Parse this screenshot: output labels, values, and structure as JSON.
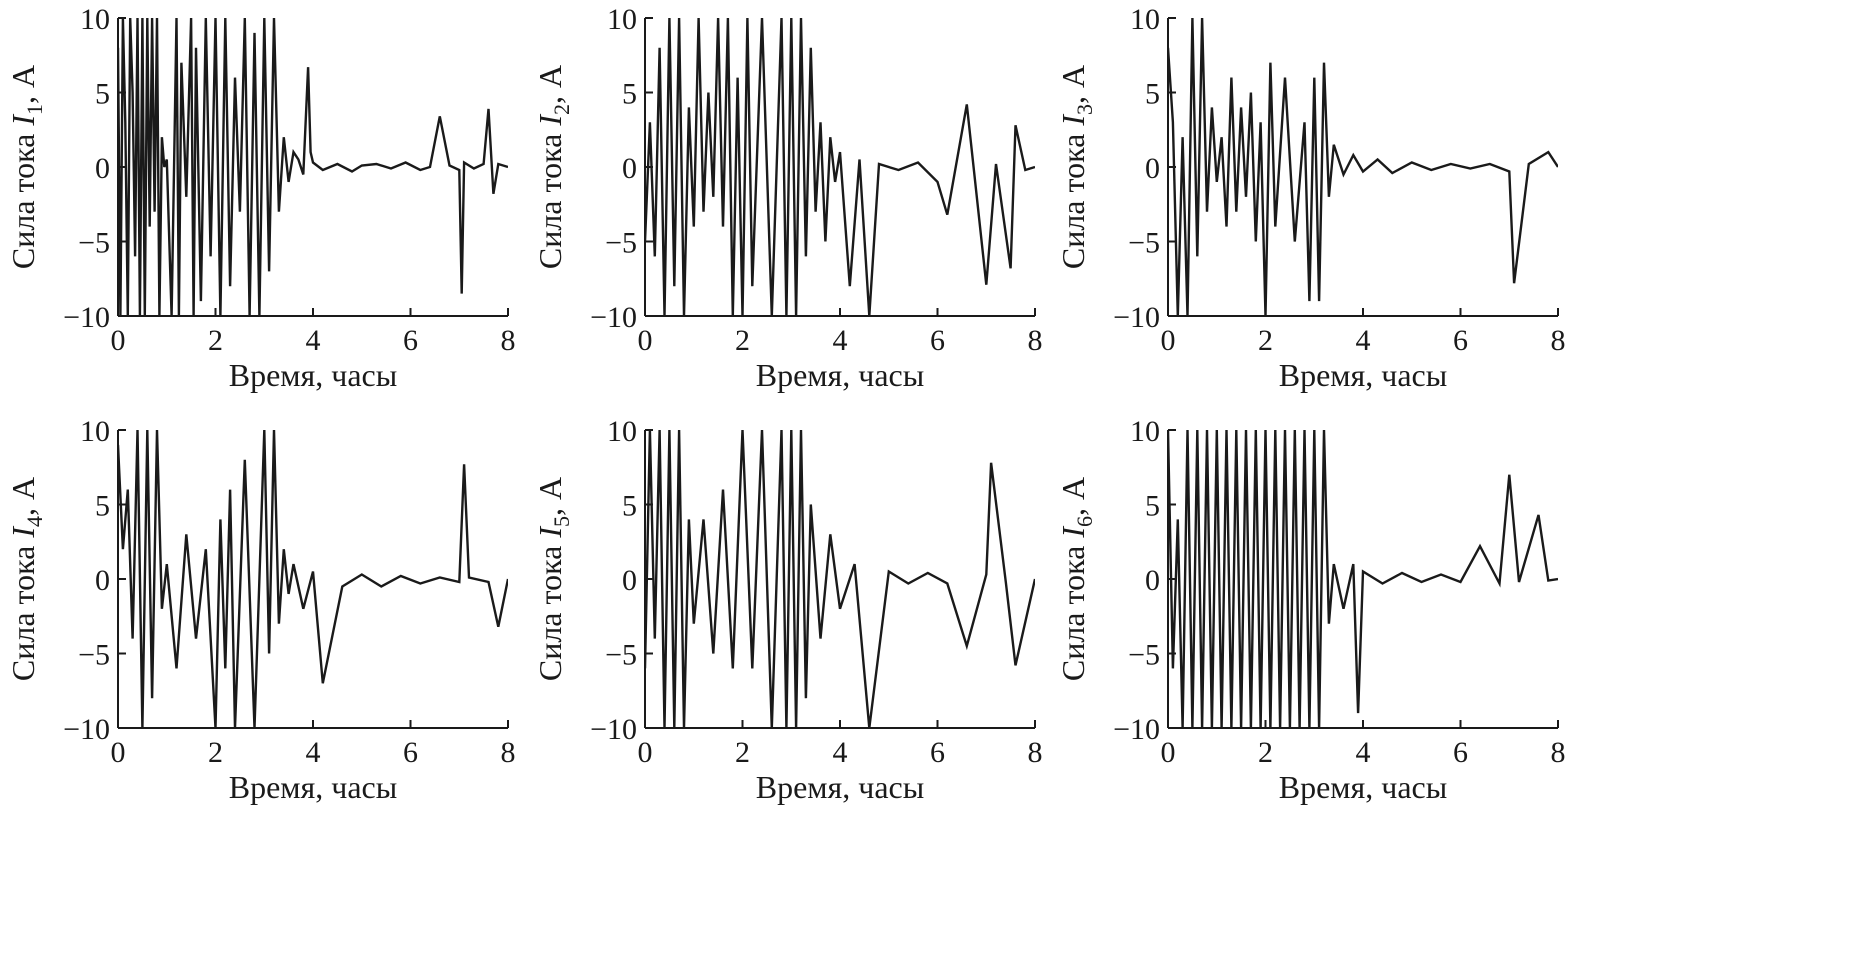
{
  "figure": {
    "panels": [
      {
        "id": "I1",
        "ylabel_prefix": "Сила тока ",
        "ylabel_var": "I",
        "ylabel_sub": "1",
        "ylabel_suffix": ", А"
      },
      {
        "id": "I2",
        "ylabel_prefix": "Сила тока ",
        "ylabel_var": "I",
        "ylabel_sub": "2",
        "ylabel_suffix": ", А"
      },
      {
        "id": "I3",
        "ylabel_prefix": "Сила тока ",
        "ylabel_var": "I",
        "ylabel_sub": "3",
        "ylabel_suffix": ", А"
      },
      {
        "id": "I4",
        "ylabel_prefix": "Сила тока ",
        "ylabel_var": "I",
        "ylabel_sub": "4",
        "ylabel_suffix": ", А"
      },
      {
        "id": "I5",
        "ylabel_prefix": "Сила тока ",
        "ylabel_var": "I",
        "ylabel_sub": "5",
        "ylabel_suffix": ", А"
      },
      {
        "id": "I6",
        "ylabel_prefix": "Сила тока ",
        "ylabel_var": "I",
        "ylabel_sub": "6",
        "ylabel_suffix": ", А"
      }
    ],
    "line_color": "#1a1a1a"
  },
  "chart_data": [
    {
      "type": "line",
      "title": "",
      "xlabel": "Время, часы",
      "ylabel": "Сила тока I1, А",
      "xlim": [
        0,
        8
      ],
      "ylim": [
        -10,
        10
      ],
      "xticks": [
        0,
        2,
        4,
        6,
        8
      ],
      "xtick_labels": [
        "0",
        "2",
        "4",
        "6",
        "8"
      ],
      "yticks": [
        -10,
        -5,
        0,
        5,
        10
      ],
      "ytick_labels": [
        "−10",
        "−5",
        "0",
        "5",
        "10"
      ],
      "grid": false,
      "series": [
        {
          "name": "I1",
          "x": [
            0,
            0.05,
            0.1,
            0.15,
            0.2,
            0.25,
            0.3,
            0.35,
            0.4,
            0.45,
            0.5,
            0.55,
            0.6,
            0.65,
            0.7,
            0.75,
            0.8,
            0.85,
            0.9,
            0.95,
            1.0,
            1.1,
            1.2,
            1.25,
            1.3,
            1.4,
            1.5,
            1.55,
            1.6,
            1.7,
            1.8,
            1.9,
            2.0,
            2.1,
            2.2,
            2.3,
            2.4,
            2.5,
            2.6,
            2.7,
            2.8,
            2.9,
            3.0,
            3.1,
            3.2,
            3.3,
            3.4,
            3.5,
            3.6,
            3.7,
            3.8,
            3.9,
            3.95,
            4.0,
            4.2,
            4.5,
            4.8,
            5.0,
            5.3,
            5.6,
            5.9,
            6.2,
            6.4,
            6.6,
            6.8,
            7.0,
            7.05,
            7.1,
            7.3,
            7.5,
            7.6,
            7.7,
            7.8,
            8.0
          ],
          "y": [
            8,
            -10,
            10,
            3,
            -10,
            10,
            5,
            -6,
            10,
            -10,
            10,
            -10,
            10,
            -4,
            10,
            -3,
            10,
            -10,
            2,
            0,
            0.5,
            -10,
            10,
            -10,
            7,
            -2,
            10,
            -10,
            8,
            -9,
            10,
            -6,
            10,
            -10,
            10,
            -8,
            6,
            -3,
            10,
            -10,
            9,
            -10,
            10,
            -7,
            10,
            -3,
            2,
            -1,
            1,
            0.5,
            -0.5,
            6.7,
            1,
            0.3,
            -0.2,
            0.2,
            -0.3,
            0.1,
            0.2,
            -0.1,
            0.3,
            -0.2,
            0,
            3.4,
            0.1,
            -0.2,
            -8.5,
            0.3,
            -0.1,
            0.2,
            3.9,
            -1.8,
            0.2,
            0
          ]
        }
      ]
    },
    {
      "type": "line",
      "title": "",
      "xlabel": "Время, часы",
      "ylabel": "Сила тока I2, А",
      "xlim": [
        0,
        8
      ],
      "ylim": [
        -10,
        10
      ],
      "xticks": [
        0,
        2,
        4,
        6,
        8
      ],
      "xtick_labels": [
        "0",
        "2",
        "4",
        "6",
        "8"
      ],
      "yticks": [
        -10,
        -5,
        0,
        5,
        10
      ],
      "ytick_labels": [
        "−10",
        "−5",
        "0",
        "5",
        "10"
      ],
      "grid": false,
      "series": [
        {
          "name": "I2",
          "x": [
            0,
            0.1,
            0.2,
            0.3,
            0.4,
            0.5,
            0.6,
            0.7,
            0.8,
            0.9,
            1.0,
            1.1,
            1.2,
            1.3,
            1.4,
            1.5,
            1.6,
            1.7,
            1.8,
            1.9,
            2.0,
            2.1,
            2.2,
            2.4,
            2.6,
            2.8,
            2.9,
            3.0,
            3.1,
            3.2,
            3.3,
            3.4,
            3.5,
            3.6,
            3.7,
            3.8,
            3.9,
            4.0,
            4.2,
            4.4,
            4.6,
            4.8,
            5.2,
            5.6,
            6.0,
            6.2,
            6.6,
            7.0,
            7.2,
            7.5,
            7.6,
            7.8,
            8.0
          ],
          "y": [
            -5,
            3,
            -6,
            8,
            -10,
            10,
            -8,
            10,
            -10,
            4,
            -4,
            10,
            -3,
            5,
            -2,
            10,
            -4,
            10,
            -10,
            6,
            -10,
            10,
            -8,
            10,
            -10,
            10,
            -10,
            10,
            -10,
            10,
            -6,
            8,
            -3,
            3,
            -5,
            2,
            -1,
            1,
            -8,
            0.5,
            -10,
            0.2,
            -0.2,
            0.3,
            -1,
            -3.2,
            4.2,
            -7.9,
            0.2,
            -6.8,
            2.8,
            -0.2,
            0
          ]
        }
      ]
    },
    {
      "type": "line",
      "title": "",
      "xlabel": "Время, часы",
      "ylabel": "Сила тока I3, А",
      "xlim": [
        0,
        8
      ],
      "ylim": [
        -10,
        10
      ],
      "xticks": [
        0,
        2,
        4,
        6,
        8
      ],
      "xtick_labels": [
        "0",
        "2",
        "4",
        "6",
        "8"
      ],
      "yticks": [
        -10,
        -5,
        0,
        5,
        10
      ],
      "ytick_labels": [
        "−10",
        "−5",
        "0",
        "5",
        "10"
      ],
      "grid": false,
      "series": [
        {
          "name": "I3",
          "x": [
            0,
            0.1,
            0.2,
            0.3,
            0.4,
            0.5,
            0.6,
            0.7,
            0.8,
            0.9,
            1.0,
            1.1,
            1.2,
            1.3,
            1.4,
            1.5,
            1.6,
            1.7,
            1.8,
            1.9,
            2.0,
            2.1,
            2.2,
            2.4,
            2.6,
            2.8,
            2.9,
            3.0,
            3.1,
            3.2,
            3.3,
            3.4,
            3.6,
            3.8,
            4.0,
            4.3,
            4.6,
            5.0,
            5.4,
            5.8,
            6.2,
            6.6,
            7.0,
            7.1,
            7.4,
            7.8,
            8.0
          ],
          "y": [
            8,
            3,
            -10,
            2,
            -10,
            10,
            -6,
            10,
            -3,
            4,
            -1,
            2,
            -4,
            6,
            -3,
            4,
            -2,
            5,
            -5,
            3,
            -10,
            7,
            -4,
            6,
            -5,
            3,
            -9,
            6,
            -9,
            7,
            -2,
            1.5,
            -0.5,
            0.8,
            -0.3,
            0.5,
            -0.4,
            0.3,
            -0.2,
            0.2,
            -0.1,
            0.2,
            -0.3,
            -7.8,
            0.2,
            1,
            0
          ]
        }
      ]
    },
    {
      "type": "line",
      "title": "",
      "xlabel": "Время, часы",
      "ylabel": "Сила тока I4, А",
      "xlim": [
        0,
        8
      ],
      "ylim": [
        -10,
        10
      ],
      "xticks": [
        0,
        2,
        4,
        6,
        8
      ],
      "xtick_labels": [
        "0",
        "2",
        "4",
        "6",
        "8"
      ],
      "yticks": [
        -10,
        -5,
        0,
        5,
        10
      ],
      "ytick_labels": [
        "−10",
        "−5",
        "0",
        "5",
        "10"
      ],
      "grid": false,
      "series": [
        {
          "name": "I4",
          "x": [
            0,
            0.1,
            0.2,
            0.3,
            0.4,
            0.5,
            0.6,
            0.7,
            0.8,
            0.9,
            1.0,
            1.2,
            1.4,
            1.6,
            1.8,
            2.0,
            2.1,
            2.2,
            2.3,
            2.4,
            2.6,
            2.8,
            3.0,
            3.1,
            3.2,
            3.3,
            3.4,
            3.5,
            3.6,
            3.8,
            4.0,
            4.2,
            4.6,
            5.0,
            5.4,
            5.8,
            6.2,
            6.6,
            7.0,
            7.1,
            7.2,
            7.6,
            7.8,
            8.0
          ],
          "y": [
            9,
            2,
            6,
            -4,
            10,
            -10,
            10,
            -8,
            10,
            -2,
            1,
            -6,
            3,
            -4,
            2,
            -10,
            4,
            -6,
            6,
            -10,
            8,
            -10,
            10,
            -5,
            10,
            -3,
            2,
            -1,
            1,
            -2,
            0.5,
            -7,
            -0.5,
            0.3,
            -0.5,
            0.2,
            -0.3,
            0.1,
            -0.2,
            7.7,
            0.1,
            -0.2,
            -3.2,
            0
          ]
        }
      ]
    },
    {
      "type": "line",
      "title": "",
      "xlabel": "Время, часы",
      "ylabel": "Сила тока I5, А",
      "xlim": [
        0,
        8
      ],
      "ylim": [
        -10,
        10
      ],
      "xticks": [
        0,
        2,
        4,
        6,
        8
      ],
      "xtick_labels": [
        "0",
        "2",
        "4",
        "6",
        "8"
      ],
      "yticks": [
        -10,
        -5,
        0,
        5,
        10
      ],
      "ytick_labels": [
        "−10",
        "−5",
        "0",
        "5",
        "10"
      ],
      "grid": false,
      "series": [
        {
          "name": "I5",
          "x": [
            0,
            0.1,
            0.2,
            0.3,
            0.4,
            0.5,
            0.6,
            0.7,
            0.8,
            0.9,
            1.0,
            1.2,
            1.4,
            1.6,
            1.8,
            2.0,
            2.2,
            2.4,
            2.6,
            2.8,
            2.9,
            3.0,
            3.1,
            3.2,
            3.3,
            3.4,
            3.6,
            3.8,
            4.0,
            4.3,
            4.6,
            5.0,
            5.4,
            5.8,
            6.2,
            6.6,
            7.0,
            7.1,
            7.4,
            7.6,
            8.0
          ],
          "y": [
            -6,
            10,
            -4,
            10,
            -10,
            10,
            -10,
            10,
            -10,
            4,
            -3,
            4,
            -5,
            6,
            -6,
            10,
            -6,
            10,
            -10,
            10,
            -10,
            10,
            -10,
            10,
            -8,
            5,
            -4,
            3,
            -2,
            1,
            -10,
            0.5,
            -0.3,
            0.4,
            -0.3,
            -4.5,
            0.3,
            7.8,
            -0.2,
            -5.8,
            0
          ]
        }
      ]
    },
    {
      "type": "line",
      "title": "",
      "xlabel": "Время, часы",
      "ylabel": "Сила тока I6, А",
      "xlim": [
        0,
        8
      ],
      "ylim": [
        -10,
        10
      ],
      "xticks": [
        0,
        2,
        4,
        6,
        8
      ],
      "xtick_labels": [
        "0",
        "2",
        "4",
        "6",
        "8"
      ],
      "yticks": [
        -10,
        -5,
        0,
        5,
        10
      ],
      "ytick_labels": [
        "−10",
        "−5",
        "0",
        "5",
        "10"
      ],
      "grid": false,
      "series": [
        {
          "name": "I6",
          "x": [
            0,
            0.1,
            0.2,
            0.3,
            0.4,
            0.5,
            0.6,
            0.7,
            0.8,
            0.9,
            1.0,
            1.1,
            1.2,
            1.3,
            1.4,
            1.5,
            1.6,
            1.7,
            1.8,
            1.9,
            2.0,
            2.1,
            2.2,
            2.3,
            2.4,
            2.5,
            2.6,
            2.7,
            2.8,
            2.9,
            3.0,
            3.1,
            3.2,
            3.3,
            3.4,
            3.6,
            3.8,
            3.9,
            4.0,
            4.4,
            4.8,
            5.2,
            5.6,
            6.0,
            6.4,
            6.8,
            7.0,
            7.2,
            7.6,
            7.8,
            8.0
          ],
          "y": [
            10,
            -6,
            4,
            -10,
            10,
            -10,
            10,
            -10,
            10,
            -10,
            10,
            -10,
            10,
            -10,
            10,
            -10,
            10,
            -10,
            10,
            -10,
            10,
            -10,
            10,
            -10,
            10,
            -10,
            10,
            -10,
            10,
            -10,
            10,
            -10,
            10,
            -3,
            1,
            -2,
            1,
            -9,
            0.5,
            -0.3,
            0.4,
            -0.2,
            0.3,
            -0.2,
            2.2,
            -0.3,
            7,
            -0.2,
            4.3,
            -0.1,
            0
          ]
        }
      ]
    }
  ]
}
